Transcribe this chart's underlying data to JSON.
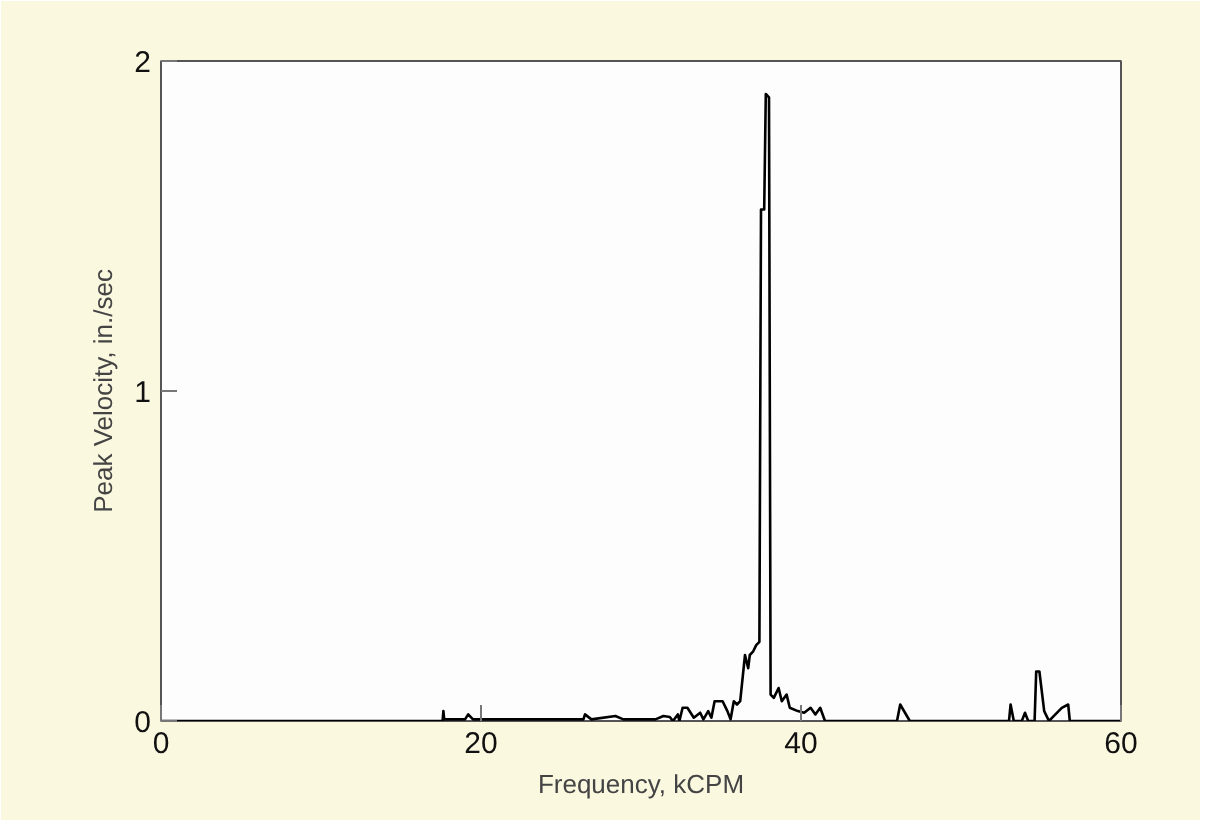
{
  "chart_data": {
    "type": "line",
    "xlabel": "Frequency, kCPM",
    "ylabel": "Peak Velocity, in./sec",
    "xlim": [
      0,
      60
    ],
    "ylim": [
      0,
      2
    ],
    "xticks": [
      0,
      20,
      40,
      60
    ],
    "yticks": [
      0,
      1,
      2
    ],
    "grid": false,
    "marker": "none",
    "line_style": "solid",
    "x": [
      0,
      17.6,
      17.65,
      17.7,
      19.0,
      19.2,
      19.5,
      26.4,
      26.5,
      26.9,
      28.4,
      28.9,
      30.9,
      31.4,
      31.8,
      32.0,
      32.3,
      32.4,
      32.6,
      32.9,
      33.3,
      33.7,
      33.9,
      34.2,
      34.4,
      34.6,
      35.1,
      35.4,
      35.6,
      35.8,
      36.0,
      36.2,
      36.5,
      36.7,
      36.8,
      37.0,
      37.2,
      37.4,
      37.5,
      37.7,
      37.8,
      38.0,
      38.1,
      38.3,
      38.6,
      38.8,
      39.1,
      39.3,
      39.8,
      40.2,
      40.6,
      40.9,
      41.2,
      41.5,
      46.0,
      46.2,
      46.8,
      53.0,
      53.1,
      53.3,
      53.8,
      54.0,
      54.2,
      54.6,
      54.7,
      54.9,
      55.2,
      55.5,
      55.9,
      56.3,
      56.7,
      56.8,
      60
    ],
    "series": [
      {
        "color": "#000000",
        "values": [
          0,
          0,
          0.03,
          0.005,
          0.005,
          0.02,
          0.005,
          0.005,
          0.02,
          0.005,
          0.015,
          0.005,
          0.005,
          0.015,
          0.012,
          0,
          0.02,
          0,
          0.04,
          0.04,
          0.01,
          0.025,
          0.005,
          0.03,
          0.01,
          0.06,
          0.06,
          0.03,
          0.005,
          0.06,
          0.05,
          0.06,
          0.2,
          0.16,
          0.2,
          0.21,
          0.23,
          0.24,
          1.55,
          1.55,
          1.9,
          1.89,
          0.08,
          0.07,
          0.1,
          0.06,
          0.08,
          0.04,
          0.03,
          0.025,
          0.04,
          0.02,
          0.04,
          0,
          0,
          0.05,
          0,
          0,
          0.05,
          0,
          0,
          0.025,
          0,
          0,
          0.15,
          0.15,
          0.03,
          0,
          0.02,
          0.04,
          0.05,
          0,
          0
        ]
      }
    ]
  }
}
